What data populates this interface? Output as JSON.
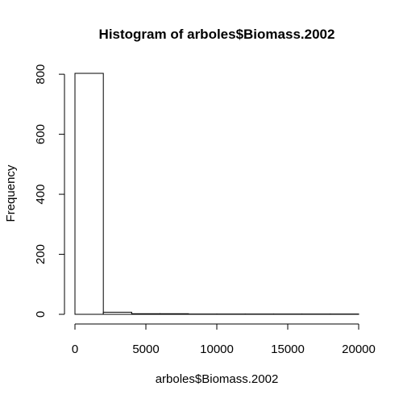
{
  "chart_data": {
    "type": "bar",
    "subtype": "histogram",
    "title": "Histogram of arboles$Biomass.2002",
    "xlabel": "arboles$Biomass.2002",
    "ylabel": "Frequency",
    "bin_width": 2000,
    "bins": [
      {
        "start": 0,
        "end": 2000,
        "count": 803
      },
      {
        "start": 2000,
        "end": 4000,
        "count": 7
      },
      {
        "start": 4000,
        "end": 6000,
        "count": 2
      },
      {
        "start": 6000,
        "end": 8000,
        "count": 2
      },
      {
        "start": 8000,
        "end": 10000,
        "count": 1
      },
      {
        "start": 10000,
        "end": 12000,
        "count": 1
      },
      {
        "start": 12000,
        "end": 14000,
        "count": 1
      },
      {
        "start": 14000,
        "end": 16000,
        "count": 1
      },
      {
        "start": 16000,
        "end": 18000,
        "count": 1
      },
      {
        "start": 18000,
        "end": 20000,
        "count": 1
      }
    ],
    "xlim": [
      0,
      20000
    ],
    "ylim": [
      0,
      803
    ],
    "x_ticks": [
      0,
      5000,
      10000,
      15000,
      20000
    ],
    "x_tick_labels": [
      "0",
      "5000",
      "10000",
      "15000",
      "20000"
    ],
    "y_ticks": [
      0,
      200,
      400,
      600,
      800
    ],
    "y_tick_labels": [
      "0",
      "200",
      "400",
      "600",
      "800"
    ],
    "grid": false,
    "bar_fill": "#ffffff",
    "bar_stroke": "#000000"
  }
}
